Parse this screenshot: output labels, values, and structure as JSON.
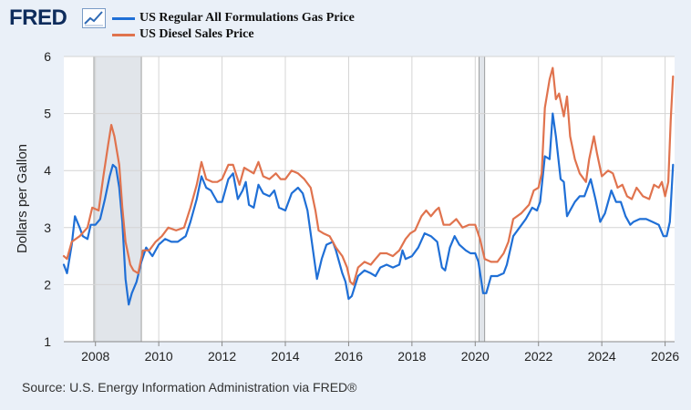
{
  "brand": {
    "logo_text": "FRED"
  },
  "source": "Source: U.S. Energy Information Administration via FRED®",
  "chart_data": {
    "type": "line",
    "title": "",
    "xlabel": "",
    "ylabel": "Dollars per Gallon",
    "xlim": [
      2007.0,
      2026.3
    ],
    "ylim": [
      1,
      6
    ],
    "x_ticks": [
      2008,
      2010,
      2012,
      2014,
      2016,
      2018,
      2020,
      2022,
      2024,
      2026
    ],
    "y_ticks": [
      1,
      2,
      3,
      4,
      5,
      6
    ],
    "grid": true,
    "legend_position": "top-left",
    "recessions": [
      {
        "start": 2007.95,
        "end": 2009.45
      },
      {
        "start": 2020.12,
        "end": 2020.3
      }
    ],
    "series": [
      {
        "name": "US Regular All Formulations Gas Price",
        "color": "#1f6fd6",
        "points": [
          [
            2007.0,
            2.35
          ],
          [
            2007.1,
            2.2
          ],
          [
            2007.25,
            2.7
          ],
          [
            2007.35,
            3.2
          ],
          [
            2007.5,
            3.0
          ],
          [
            2007.6,
            2.85
          ],
          [
            2007.75,
            2.8
          ],
          [
            2007.85,
            3.05
          ],
          [
            2008.0,
            3.05
          ],
          [
            2008.15,
            3.15
          ],
          [
            2008.3,
            3.5
          ],
          [
            2008.45,
            3.9
          ],
          [
            2008.55,
            4.1
          ],
          [
            2008.65,
            4.05
          ],
          [
            2008.75,
            3.7
          ],
          [
            2008.85,
            3.1
          ],
          [
            2008.95,
            2.1
          ],
          [
            2009.05,
            1.65
          ],
          [
            2009.15,
            1.85
          ],
          [
            2009.3,
            2.05
          ],
          [
            2009.45,
            2.4
          ],
          [
            2009.6,
            2.65
          ],
          [
            2009.8,
            2.5
          ],
          [
            2010.0,
            2.7
          ],
          [
            2010.2,
            2.8
          ],
          [
            2010.4,
            2.75
          ],
          [
            2010.6,
            2.75
          ],
          [
            2010.85,
            2.85
          ],
          [
            2011.0,
            3.1
          ],
          [
            2011.2,
            3.5
          ],
          [
            2011.35,
            3.9
          ],
          [
            2011.5,
            3.7
          ],
          [
            2011.65,
            3.65
          ],
          [
            2011.85,
            3.45
          ],
          [
            2012.0,
            3.45
          ],
          [
            2012.2,
            3.85
          ],
          [
            2012.35,
            3.95
          ],
          [
            2012.5,
            3.5
          ],
          [
            2012.65,
            3.65
          ],
          [
            2012.75,
            3.8
          ],
          [
            2012.85,
            3.4
          ],
          [
            2013.0,
            3.35
          ],
          [
            2013.15,
            3.75
          ],
          [
            2013.3,
            3.6
          ],
          [
            2013.5,
            3.55
          ],
          [
            2013.65,
            3.65
          ],
          [
            2013.8,
            3.35
          ],
          [
            2014.0,
            3.3
          ],
          [
            2014.2,
            3.6
          ],
          [
            2014.4,
            3.7
          ],
          [
            2014.55,
            3.6
          ],
          [
            2014.7,
            3.3
          ],
          [
            2014.85,
            2.7
          ],
          [
            2015.0,
            2.1
          ],
          [
            2015.15,
            2.45
          ],
          [
            2015.3,
            2.7
          ],
          [
            2015.5,
            2.75
          ],
          [
            2015.6,
            2.6
          ],
          [
            2015.8,
            2.2
          ],
          [
            2015.9,
            2.05
          ],
          [
            2016.0,
            1.75
          ],
          [
            2016.1,
            1.8
          ],
          [
            2016.3,
            2.15
          ],
          [
            2016.5,
            2.25
          ],
          [
            2016.7,
            2.2
          ],
          [
            2016.85,
            2.15
          ],
          [
            2017.0,
            2.3
          ],
          [
            2017.2,
            2.35
          ],
          [
            2017.4,
            2.3
          ],
          [
            2017.6,
            2.35
          ],
          [
            2017.7,
            2.6
          ],
          [
            2017.8,
            2.45
          ],
          [
            2018.0,
            2.5
          ],
          [
            2018.2,
            2.65
          ],
          [
            2018.4,
            2.9
          ],
          [
            2018.6,
            2.85
          ],
          [
            2018.8,
            2.75
          ],
          [
            2018.95,
            2.3
          ],
          [
            2019.05,
            2.25
          ],
          [
            2019.2,
            2.65
          ],
          [
            2019.35,
            2.85
          ],
          [
            2019.5,
            2.7
          ],
          [
            2019.7,
            2.6
          ],
          [
            2019.85,
            2.55
          ],
          [
            2020.0,
            2.55
          ],
          [
            2020.1,
            2.4
          ],
          [
            2020.25,
            1.85
          ],
          [
            2020.35,
            1.85
          ],
          [
            2020.5,
            2.15
          ],
          [
            2020.7,
            2.15
          ],
          [
            2020.9,
            2.2
          ],
          [
            2021.0,
            2.35
          ],
          [
            2021.2,
            2.85
          ],
          [
            2021.4,
            3.0
          ],
          [
            2021.6,
            3.15
          ],
          [
            2021.8,
            3.35
          ],
          [
            2021.95,
            3.3
          ],
          [
            2022.05,
            3.45
          ],
          [
            2022.2,
            4.25
          ],
          [
            2022.35,
            4.2
          ],
          [
            2022.45,
            5.0
          ],
          [
            2022.55,
            4.6
          ],
          [
            2022.7,
            3.85
          ],
          [
            2022.8,
            3.8
          ],
          [
            2022.9,
            3.2
          ],
          [
            2023.0,
            3.3
          ],
          [
            2023.15,
            3.45
          ],
          [
            2023.3,
            3.55
          ],
          [
            2023.45,
            3.55
          ],
          [
            2023.65,
            3.85
          ],
          [
            2023.8,
            3.5
          ],
          [
            2023.95,
            3.1
          ],
          [
            2024.1,
            3.25
          ],
          [
            2024.3,
            3.65
          ],
          [
            2024.45,
            3.45
          ],
          [
            2024.6,
            3.45
          ],
          [
            2024.75,
            3.2
          ],
          [
            2024.9,
            3.05
          ],
          [
            2025.0,
            3.1
          ],
          [
            2025.2,
            3.15
          ],
          [
            2025.4,
            3.15
          ],
          [
            2025.6,
            3.1
          ],
          [
            2025.8,
            3.05
          ],
          [
            2025.95,
            2.85
          ],
          [
            2026.05,
            2.85
          ],
          [
            2026.15,
            3.1
          ],
          [
            2026.25,
            4.1
          ]
        ]
      },
      {
        "name": "US Diesel Sales Price",
        "color": "#e0734e",
        "points": [
          [
            2007.0,
            2.5
          ],
          [
            2007.1,
            2.45
          ],
          [
            2007.25,
            2.75
          ],
          [
            2007.5,
            2.85
          ],
          [
            2007.75,
            3.0
          ],
          [
            2007.9,
            3.35
          ],
          [
            2008.1,
            3.3
          ],
          [
            2008.25,
            3.9
          ],
          [
            2008.4,
            4.45
          ],
          [
            2008.5,
            4.8
          ],
          [
            2008.6,
            4.6
          ],
          [
            2008.75,
            4.1
          ],
          [
            2008.85,
            3.35
          ],
          [
            2008.95,
            2.75
          ],
          [
            2009.1,
            2.35
          ],
          [
            2009.2,
            2.25
          ],
          [
            2009.35,
            2.2
          ],
          [
            2009.5,
            2.6
          ],
          [
            2009.7,
            2.6
          ],
          [
            2009.9,
            2.75
          ],
          [
            2010.1,
            2.85
          ],
          [
            2010.3,
            3.0
          ],
          [
            2010.55,
            2.95
          ],
          [
            2010.8,
            3.0
          ],
          [
            2011.0,
            3.35
          ],
          [
            2011.2,
            3.75
          ],
          [
            2011.35,
            4.15
          ],
          [
            2011.5,
            3.85
          ],
          [
            2011.7,
            3.8
          ],
          [
            2011.85,
            3.8
          ],
          [
            2012.0,
            3.85
          ],
          [
            2012.2,
            4.1
          ],
          [
            2012.35,
            4.1
          ],
          [
            2012.55,
            3.75
          ],
          [
            2012.7,
            4.05
          ],
          [
            2012.85,
            4.0
          ],
          [
            2013.0,
            3.95
          ],
          [
            2013.15,
            4.15
          ],
          [
            2013.3,
            3.9
          ],
          [
            2013.5,
            3.85
          ],
          [
            2013.7,
            3.95
          ],
          [
            2013.85,
            3.85
          ],
          [
            2014.0,
            3.85
          ],
          [
            2014.2,
            4.0
          ],
          [
            2014.4,
            3.95
          ],
          [
            2014.6,
            3.85
          ],
          [
            2014.8,
            3.7
          ],
          [
            2014.95,
            3.3
          ],
          [
            2015.05,
            2.95
          ],
          [
            2015.2,
            2.9
          ],
          [
            2015.4,
            2.85
          ],
          [
            2015.6,
            2.65
          ],
          [
            2015.8,
            2.5
          ],
          [
            2015.95,
            2.3
          ],
          [
            2016.05,
            2.05
          ],
          [
            2016.15,
            2.0
          ],
          [
            2016.3,
            2.3
          ],
          [
            2016.5,
            2.4
          ],
          [
            2016.7,
            2.35
          ],
          [
            2016.85,
            2.45
          ],
          [
            2017.0,
            2.55
          ],
          [
            2017.2,
            2.55
          ],
          [
            2017.4,
            2.5
          ],
          [
            2017.6,
            2.6
          ],
          [
            2017.8,
            2.8
          ],
          [
            2017.95,
            2.9
          ],
          [
            2018.1,
            2.95
          ],
          [
            2018.3,
            3.2
          ],
          [
            2018.45,
            3.3
          ],
          [
            2018.6,
            3.2
          ],
          [
            2018.75,
            3.3
          ],
          [
            2018.85,
            3.35
          ],
          [
            2019.0,
            3.05
          ],
          [
            2019.2,
            3.05
          ],
          [
            2019.4,
            3.15
          ],
          [
            2019.6,
            3.0
          ],
          [
            2019.8,
            3.05
          ],
          [
            2020.0,
            3.05
          ],
          [
            2020.15,
            2.8
          ],
          [
            2020.3,
            2.45
          ],
          [
            2020.5,
            2.4
          ],
          [
            2020.7,
            2.4
          ],
          [
            2020.9,
            2.55
          ],
          [
            2021.05,
            2.75
          ],
          [
            2021.2,
            3.15
          ],
          [
            2021.45,
            3.25
          ],
          [
            2021.7,
            3.4
          ],
          [
            2021.85,
            3.65
          ],
          [
            2022.0,
            3.7
          ],
          [
            2022.1,
            3.95
          ],
          [
            2022.2,
            5.1
          ],
          [
            2022.35,
            5.6
          ],
          [
            2022.45,
            5.8
          ],
          [
            2022.55,
            5.25
          ],
          [
            2022.65,
            5.35
          ],
          [
            2022.8,
            4.95
          ],
          [
            2022.9,
            5.3
          ],
          [
            2023.0,
            4.6
          ],
          [
            2023.15,
            4.2
          ],
          [
            2023.3,
            3.95
          ],
          [
            2023.5,
            3.8
          ],
          [
            2023.6,
            4.2
          ],
          [
            2023.75,
            4.6
          ],
          [
            2023.85,
            4.3
          ],
          [
            2024.0,
            3.9
          ],
          [
            2024.2,
            4.0
          ],
          [
            2024.35,
            3.95
          ],
          [
            2024.5,
            3.7
          ],
          [
            2024.65,
            3.75
          ],
          [
            2024.8,
            3.55
          ],
          [
            2024.95,
            3.5
          ],
          [
            2025.1,
            3.7
          ],
          [
            2025.3,
            3.55
          ],
          [
            2025.5,
            3.5
          ],
          [
            2025.65,
            3.75
          ],
          [
            2025.8,
            3.7
          ],
          [
            2025.9,
            3.8
          ],
          [
            2026.0,
            3.55
          ],
          [
            2026.1,
            3.8
          ],
          [
            2026.18,
            4.9
          ],
          [
            2026.25,
            5.65
          ]
        ]
      }
    ]
  }
}
